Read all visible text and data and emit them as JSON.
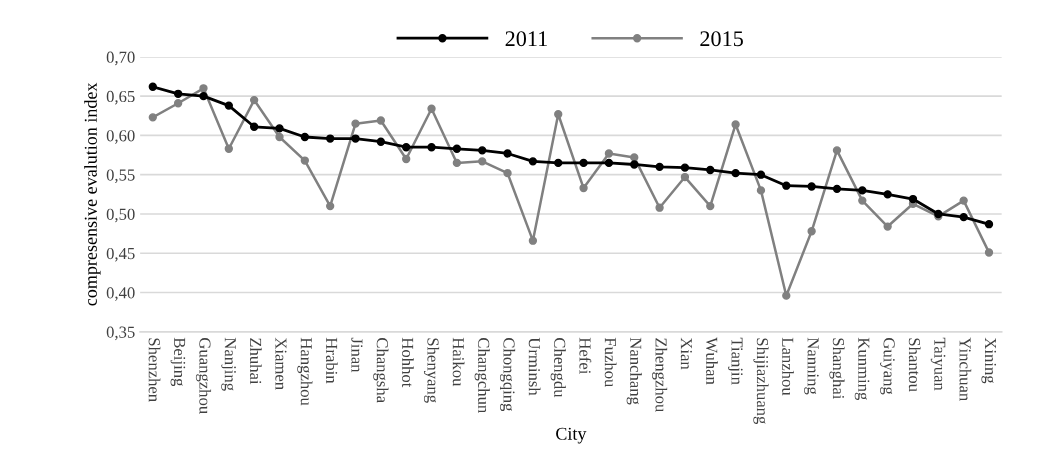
{
  "chart_data": {
    "type": "line",
    "xlabel": "City",
    "ylabel": "compresensive evalution index",
    "categories": [
      "Shenzhen",
      "Beijing",
      "Guangzhou",
      "Nanjing",
      "Zhuhai",
      "Xiamen",
      "Hangzhou",
      "Hrabin",
      "Jinan",
      "Changsha",
      "Hohhot",
      "Shenyang",
      "Haikou",
      "Changchun",
      "Chongqing",
      "Urminsh",
      "Chengdu",
      "Hefei",
      "Fuzhou",
      "Nanchang",
      "Zhengzhou",
      "Xian",
      "Wuhan",
      "Tianjin",
      "Shijiazhuang",
      "Lanzhou",
      "Nanning",
      "Shanghai",
      "Kunming",
      "Guiyang",
      "Shantou",
      "Taiyuan",
      "Yinchuan",
      "Xining"
    ],
    "series": [
      {
        "name": "2011",
        "color": "#000000",
        "values": [
          0.662,
          0.653,
          0.65,
          0.638,
          0.611,
          0.609,
          0.598,
          0.596,
          0.596,
          0.592,
          0.585,
          0.585,
          0.583,
          0.581,
          0.577,
          0.567,
          0.565,
          0.565,
          0.565,
          0.563,
          0.56,
          0.559,
          0.556,
          0.552,
          0.55,
          0.536,
          0.535,
          0.532,
          0.53,
          0.525,
          0.519,
          0.5,
          0.496,
          0.487
        ]
      },
      {
        "name": "2015",
        "color": "#808080",
        "values": [
          0.623,
          0.641,
          0.66,
          0.583,
          0.645,
          0.598,
          0.568,
          0.51,
          0.615,
          0.619,
          0.57,
          0.634,
          0.565,
          0.567,
          0.552,
          0.466,
          0.627,
          0.533,
          0.577,
          0.572,
          0.508,
          0.547,
          0.51,
          0.614,
          0.53,
          0.396,
          0.478,
          0.581,
          0.517,
          0.484,
          0.513,
          0.497,
          0.517,
          0.451
        ]
      }
    ],
    "ylim": [
      0.35,
      0.7
    ],
    "yticks": [
      {
        "value": 0.35,
        "label": "0,35"
      },
      {
        "value": 0.4,
        "label": "0,40"
      },
      {
        "value": 0.45,
        "label": "0,45"
      },
      {
        "value": 0.5,
        "label": "0,50"
      },
      {
        "value": 0.55,
        "label": "0,55"
      },
      {
        "value": 0.6,
        "label": "0,60"
      },
      {
        "value": 0.65,
        "label": "0,65"
      },
      {
        "value": 0.7,
        "label": "0,70"
      }
    ],
    "grid": "y",
    "legend": "top",
    "marker": "circle",
    "line_style": "solid"
  }
}
